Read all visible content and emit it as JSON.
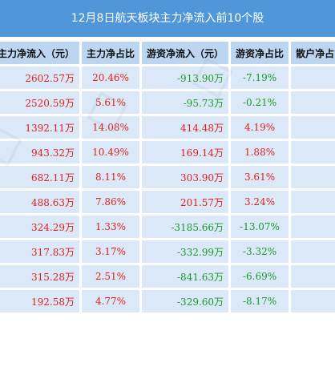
{
  "title": "12月8日航天板块主力净流入前10个股",
  "headers": [
    "主力净流入（元）",
    "主力净占比",
    "游资净流入（元）",
    "游资净占比",
    "散户净占比"
  ],
  "rows": [
    {
      "main_in": "2602.57万",
      "main_pct": "20.46%",
      "hot_in": "-913.90万",
      "hot_pct": "-7.19%"
    },
    {
      "main_in": "2520.59万",
      "main_pct": "5.61%",
      "hot_in": "-95.73万",
      "hot_pct": "-0.21%"
    },
    {
      "main_in": "1392.11万",
      "main_pct": "14.08%",
      "hot_in": "414.48万",
      "hot_pct": "4.19%"
    },
    {
      "main_in": "943.32万",
      "main_pct": "10.49%",
      "hot_in": "169.14万",
      "hot_pct": "1.88%"
    },
    {
      "main_in": "682.11万",
      "main_pct": "8.11%",
      "hot_in": "303.90万",
      "hot_pct": "3.61%"
    },
    {
      "main_in": "488.63万",
      "main_pct": "7.86%",
      "hot_in": "201.57万",
      "hot_pct": "3.24%"
    },
    {
      "main_in": "324.29万",
      "main_pct": "1.33%",
      "hot_in": "-3185.66万",
      "hot_pct": "-13.07%"
    },
    {
      "main_in": "317.83万",
      "main_pct": "3.17%",
      "hot_in": "-332.99万",
      "hot_pct": "-3.32%"
    },
    {
      "main_in": "315.28万",
      "main_pct": "2.51%",
      "hot_in": "-841.63万",
      "hot_pct": "-6.69%"
    },
    {
      "main_in": "192.58万",
      "main_pct": "4.77%",
      "hot_in": "-329.60万",
      "hot_pct": "-8.17%"
    }
  ],
  "colors": {
    "header_bar": "#4f97d9",
    "header_cell": "#bcd6f2",
    "cell": "#dbe8f7",
    "positive": "#e02020",
    "negative": "#1a9a2a"
  }
}
